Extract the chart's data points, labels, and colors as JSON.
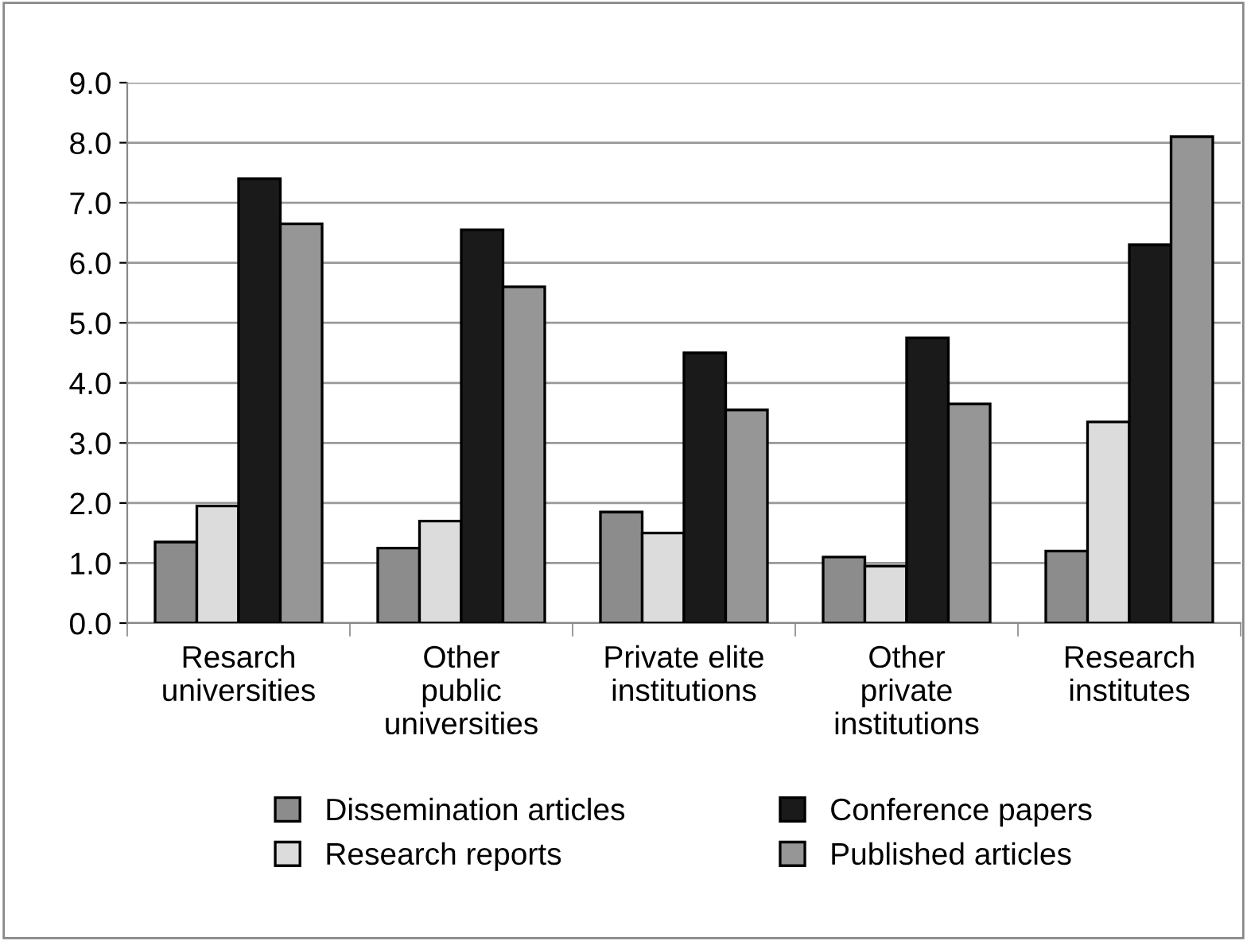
{
  "chart_data": {
    "type": "bar",
    "categories": [
      "Resarch\nuniversities",
      "Other\npublic\nuniversities",
      "Private elite\ninstitutions",
      "Other\nprivate\ninstitutions",
      "Research\ninstitutes"
    ],
    "series": [
      {
        "name": "Dissemination articles",
        "color": "#8c8c8c",
        "values": [
          1.35,
          1.25,
          1.85,
          1.1,
          1.2
        ]
      },
      {
        "name": "Research reports",
        "color": "#dcdcdc",
        "values": [
          1.95,
          1.7,
          1.5,
          0.95,
          3.35
        ]
      },
      {
        "name": "Conference papers",
        "color": "#1a1a1a",
        "values": [
          7.4,
          6.55,
          4.5,
          4.75,
          6.3
        ]
      },
      {
        "name": "Published articles",
        "color": "#969696",
        "values": [
          6.65,
          5.6,
          3.55,
          3.65,
          8.1
        ]
      }
    ],
    "ylim": [
      0,
      9
    ],
    "yticks": [
      {
        "value": 0,
        "label": "0.0"
      },
      {
        "value": 1,
        "label": "1.0"
      },
      {
        "value": 2,
        "label": "2.0"
      },
      {
        "value": 3,
        "label": "3.0"
      },
      {
        "value": 4,
        "label": "4.0"
      },
      {
        "value": 5,
        "label": "5.0"
      },
      {
        "value": 6,
        "label": "6.0"
      },
      {
        "value": 7,
        "label": "7.0"
      },
      {
        "value": 8,
        "label": "8.0"
      },
      {
        "value": 9,
        "label": "9.0"
      }
    ],
    "grid": "y",
    "legend": "bottom"
  }
}
